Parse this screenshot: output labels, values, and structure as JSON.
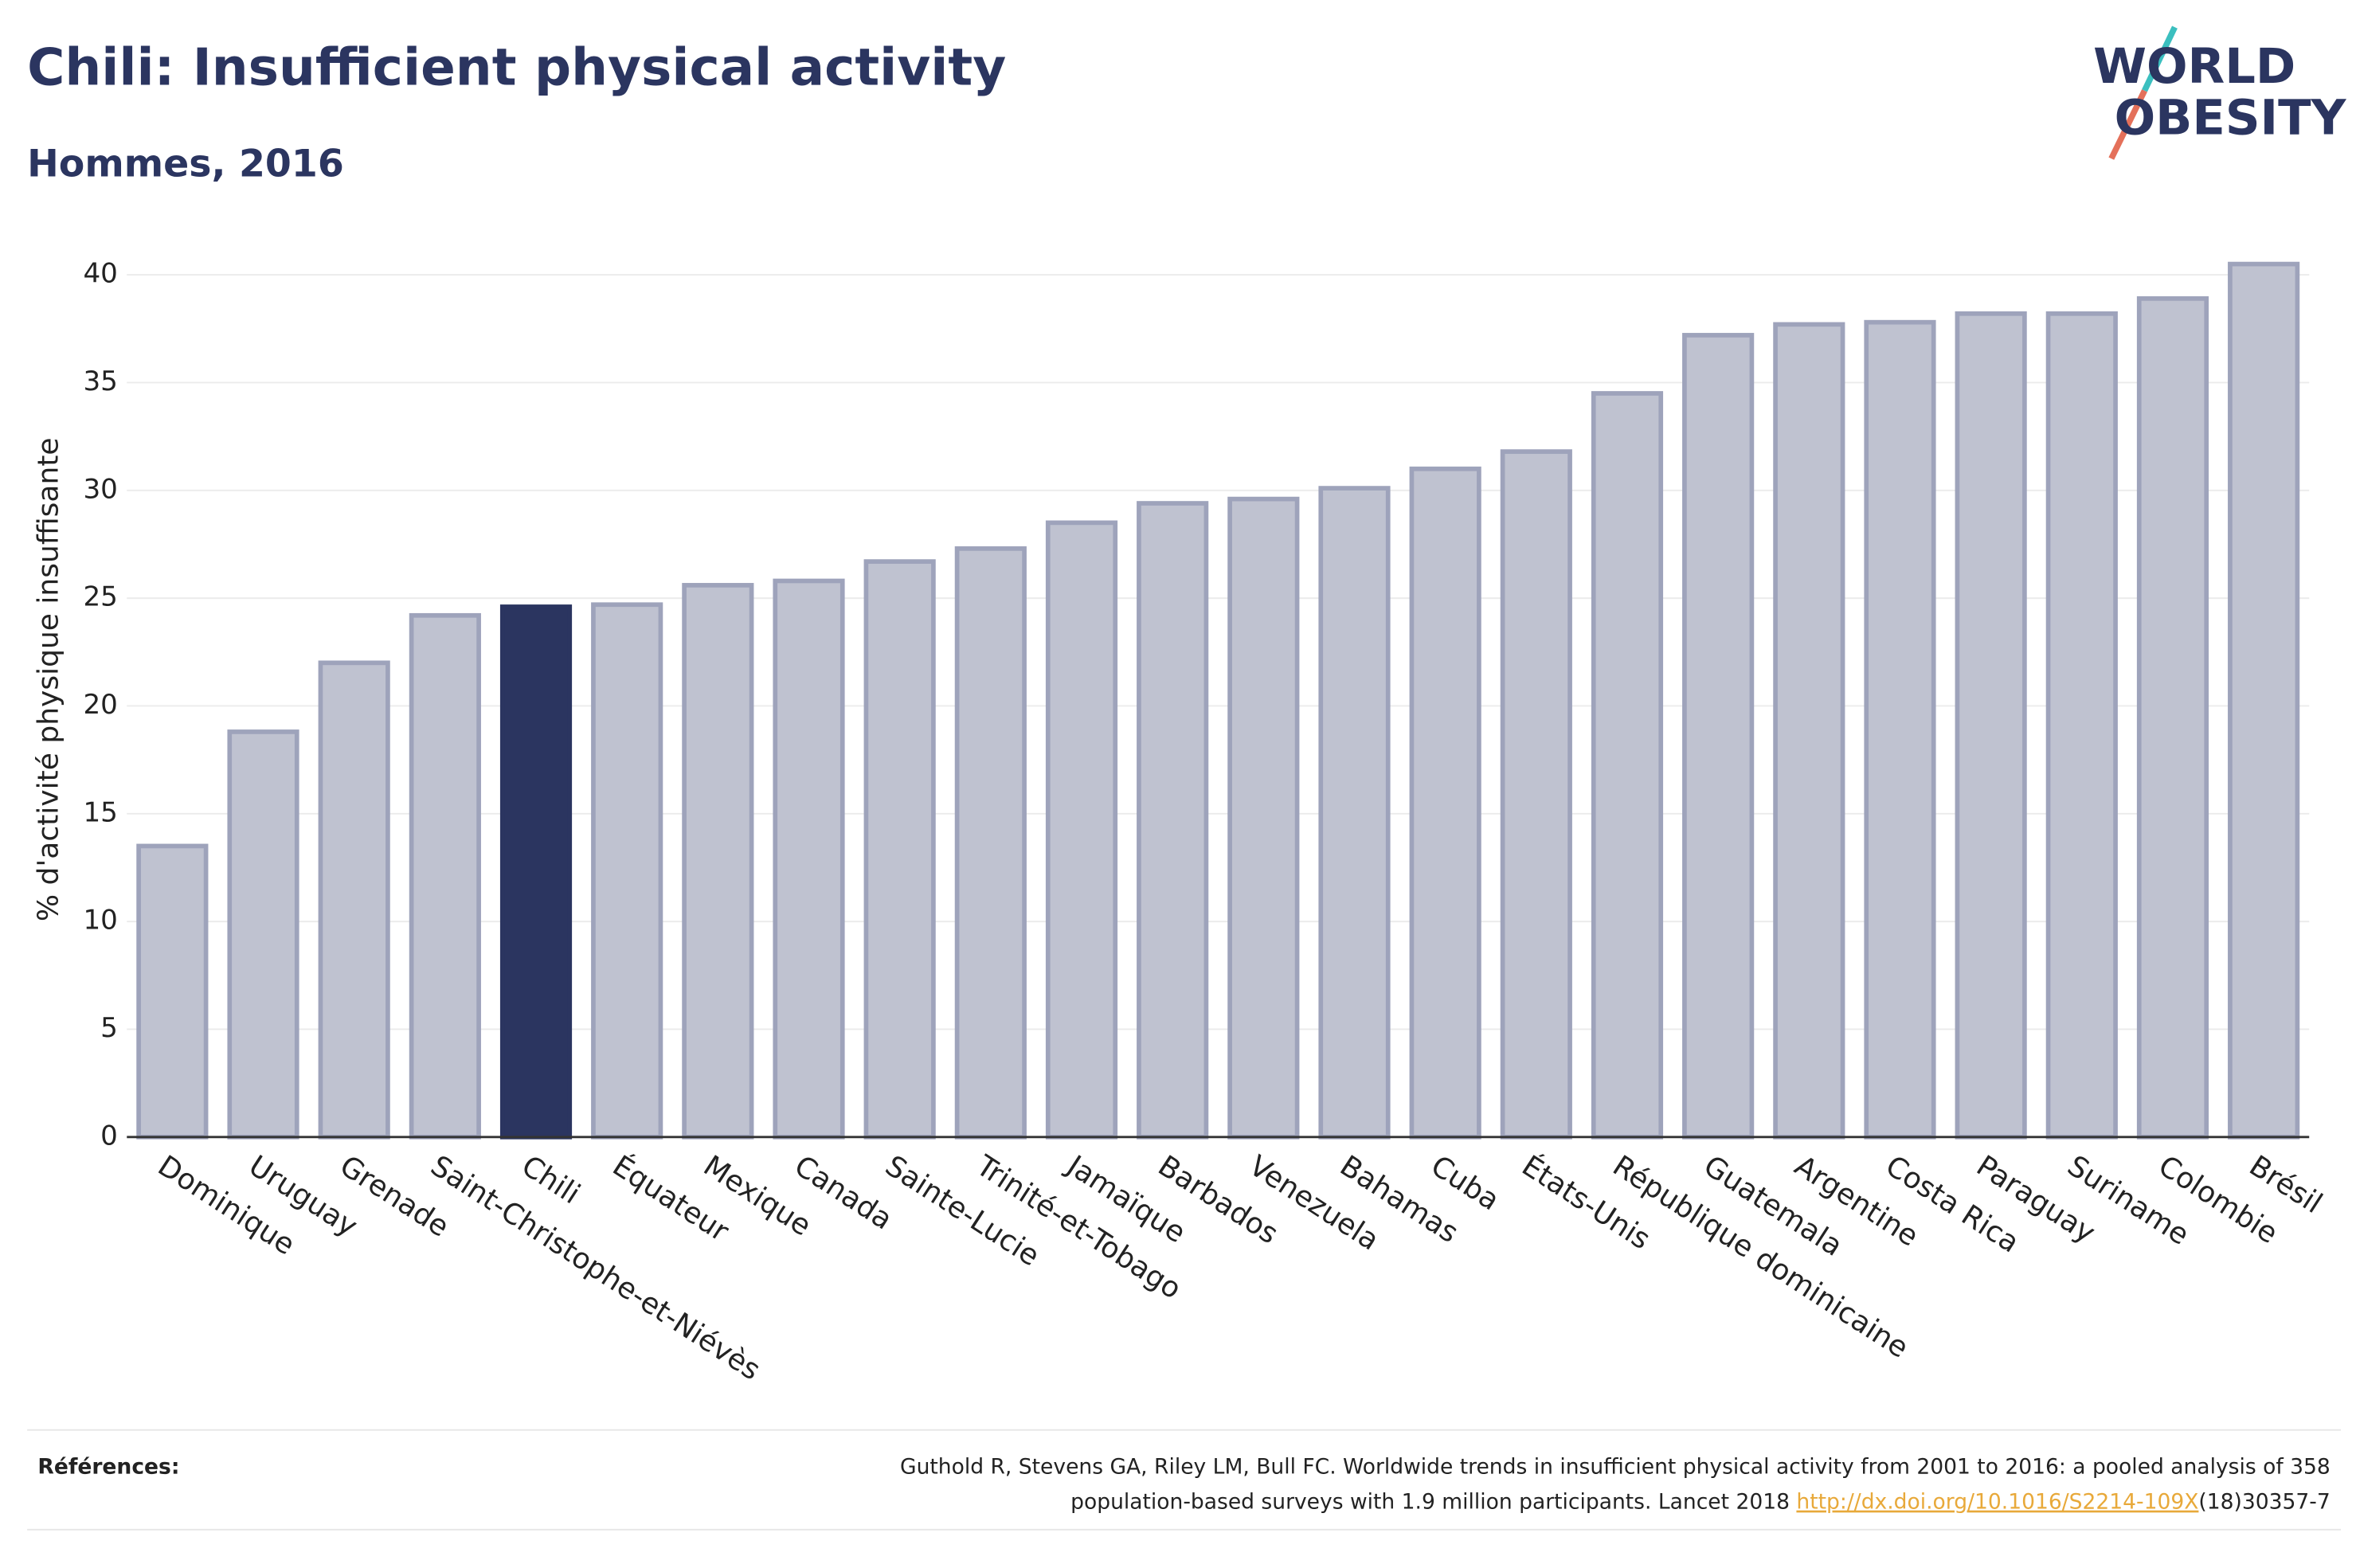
{
  "chart_data": {
    "type": "bar",
    "title": "Chili: Insufficient physical activity",
    "subtitle": "Hommes, 2016",
    "y_label": "% d'activité physique insuffisante",
    "categories": [
      "Dominique",
      "Uruguay",
      "Grenade",
      "Saint-Christophe-et-Niévès",
      "Chili",
      "Équateur",
      "Mexique",
      "Canada",
      "Sainte-Lucie",
      "Trinité-et-Tobago",
      "Jamaïque",
      "Barbados",
      "Venezuela",
      "Bahamas",
      "Cuba",
      "États-Unis",
      "République dominicaine",
      "Guatemala",
      "Argentine",
      "Costa Rica",
      "Paraguay",
      "Suriname",
      "Colombie",
      "Brésil"
    ],
    "values": [
      13.5,
      18.8,
      22.0,
      24.2,
      24.6,
      24.7,
      25.6,
      25.8,
      26.7,
      27.3,
      28.5,
      29.4,
      29.6,
      30.1,
      31.0,
      31.8,
      34.5,
      37.2,
      37.7,
      37.8,
      38.2,
      38.2,
      38.9,
      40.5
    ],
    "colors": [
      "#bfc2d0",
      "#bfc2d0",
      "#bfc2d0",
      "#bfc2d0",
      "#2b3560",
      "#bfc2d0",
      "#bfc2d0",
      "#bfc2d0",
      "#bfc2d0",
      "#bfc2d0",
      "#bfc2d0",
      "#bfc2d0",
      "#bfc2d0",
      "#bfc2d0",
      "#bfc2d0",
      "#bfc2d0",
      "#bfc2d0",
      "#bfc2d0",
      "#bfc2d0",
      "#bfc2d0",
      "#bfc2d0",
      "#bfc2d0",
      "#bfc2d0",
      "#bfc2d0"
    ],
    "ylim": [
      0,
      42
    ],
    "yticks": [
      0,
      5,
      10,
      15,
      20,
      25,
      30,
      35,
      40
    ],
    "grid": true
  },
  "logo": {
    "line1": "WORLD",
    "line2": "OBESITY"
  },
  "references": {
    "label": "Références:",
    "line1": "Guthold R, Stevens GA, Riley LM, Bull FC. Worldwide trends in insufficient physical activity from 2001 to 2016: a pooled analysis of 358",
    "line2": "population-based surveys with 1.9 million participants. Lancet 2018 ",
    "link": "http://dx.doi.org/10.1016/S2214-109X",
    "suffix": "(18)30357-7"
  }
}
